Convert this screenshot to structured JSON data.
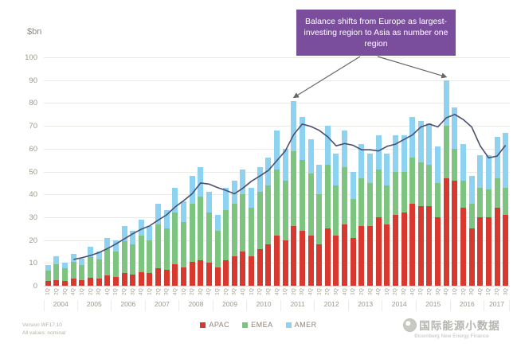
{
  "annotation": {
    "text": "Balance shifts from Europe as largest-investing region to Asia as number one region",
    "bg_color": "#7a4e9c",
    "text_color": "#ffffff",
    "arrow_color": "#666666"
  },
  "legend": [
    {
      "label": "APAC",
      "color": "#d8392e"
    },
    {
      "label": "EMEA",
      "color": "#7cc47f"
    },
    {
      "label": "AMER",
      "color": "#8dd2f0"
    }
  ],
  "footer": {
    "version": "Version WF17.10",
    "note": "All values: nominal",
    "brand": "国际能源小数据",
    "sub_brand": "Bloomberg New Energy Finance"
  },
  "chart_data": {
    "type": "bar",
    "stacked": true,
    "title": "",
    "ylabel": "$bn",
    "ylim": [
      0,
      100
    ],
    "yticks": [
      0,
      10,
      20,
      30,
      40,
      50,
      60,
      70,
      80,
      90,
      100
    ],
    "grid": true,
    "legend_position": "bottom",
    "years": [
      {
        "label": "2004",
        "quarters": 4
      },
      {
        "label": "2005",
        "quarters": 4
      },
      {
        "label": "2006",
        "quarters": 4
      },
      {
        "label": "2007",
        "quarters": 4
      },
      {
        "label": "2008",
        "quarters": 4
      },
      {
        "label": "2009",
        "quarters": 4
      },
      {
        "label": "2010",
        "quarters": 4
      },
      {
        "label": "2011",
        "quarters": 4
      },
      {
        "label": "2012",
        "quarters": 4
      },
      {
        "label": "2013",
        "quarters": 4
      },
      {
        "label": "2014",
        "quarters": 4
      },
      {
        "label": "2015",
        "quarters": 4
      },
      {
        "label": "2016",
        "quarters": 4
      },
      {
        "label": "2017",
        "quarters": 3
      }
    ],
    "quarter_names": [
      "1Q",
      "2Q",
      "3Q",
      "4Q"
    ],
    "series": [
      {
        "name": "APAC",
        "color": "#d8392e",
        "values": [
          2,
          2.5,
          2,
          3,
          2.5,
          3.5,
          3,
          4.5,
          4,
          5.5,
          5,
          6,
          5.5,
          7.5,
          7,
          9.5,
          8,
          10.5,
          11,
          10,
          8,
          11,
          13,
          15,
          13,
          16,
          18,
          22,
          20,
          26,
          24,
          22,
          18,
          25,
          22,
          27,
          21,
          26,
          26,
          30,
          27,
          31,
          32,
          36,
          35,
          35,
          30,
          47,
          46,
          34,
          25,
          30,
          30,
          34,
          31
        ]
      },
      {
        "name": "EMEA",
        "color": "#7cc47f",
        "values": [
          4.5,
          7,
          5.5,
          7.5,
          6.5,
          9,
          8.5,
          11.5,
          11,
          14,
          13,
          16,
          14.5,
          19.5,
          18,
          22.5,
          20,
          25.5,
          28,
          22,
          16,
          22,
          23,
          25,
          21,
          25,
          26,
          29,
          26,
          33,
          31,
          27,
          22,
          28,
          22,
          25,
          17,
          21,
          19,
          21,
          17,
          19,
          18,
          20,
          19,
          18,
          15,
          23,
          14,
          12,
          11,
          13,
          12,
          13,
          12
        ]
      },
      {
        "name": "AMER",
        "color": "#8dd2f0",
        "values": [
          2.5,
          3.5,
          2.5,
          3.5,
          3,
          4.5,
          3.5,
          5,
          5,
          6.5,
          6,
          7,
          6,
          9,
          8,
          11,
          9,
          12,
          13,
          9,
          7,
          10,
          10,
          11,
          9,
          11,
          12,
          17,
          14,
          22,
          19,
          15,
          13,
          17,
          14,
          16,
          12,
          15,
          13,
          15,
          14,
          16,
          16,
          18,
          18,
          18,
          16,
          20,
          18,
          16,
          12,
          14,
          15,
          18,
          24
        ]
      }
    ],
    "trend_line": {
      "name": "4-quarter rolling total trend",
      "color": "#4b4f72",
      "values": [
        null,
        null,
        null,
        11.5,
        12.25,
        13.25,
        14.5,
        16.25,
        18.25,
        20.5,
        22.75,
        24.75,
        26.25,
        28.75,
        31,
        34.5,
        37.25,
        40.25,
        45,
        44.5,
        43,
        41.75,
        40.25,
        42.75,
        45.75,
        48,
        50.5,
        54.75,
        59,
        66.25,
        70.75,
        69.75,
        68,
        65.25,
        61.25,
        62.25,
        61.5,
        59.5,
        59.5,
        59,
        61,
        62,
        64,
        66,
        69.5,
        70.75,
        69.5,
        73.5,
        75,
        72.75,
        69.5,
        61.25,
        56,
        56.75,
        61.5
      ]
    },
    "annotation_targets": {
      "left_bar_index": 29,
      "right_bar_index": 47
    }
  }
}
